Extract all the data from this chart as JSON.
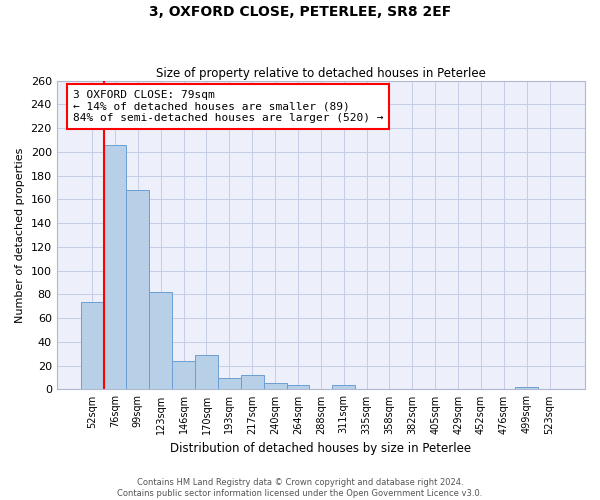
{
  "title1": "3, OXFORD CLOSE, PETERLEE, SR8 2EF",
  "title2": "Size of property relative to detached houses in Peterlee",
  "xlabel": "Distribution of detached houses by size in Peterlee",
  "ylabel": "Number of detached properties",
  "categories": [
    "52sqm",
    "76sqm",
    "99sqm",
    "123sqm",
    "146sqm",
    "170sqm",
    "193sqm",
    "217sqm",
    "240sqm",
    "264sqm",
    "288sqm",
    "311sqm",
    "335sqm",
    "358sqm",
    "382sqm",
    "405sqm",
    "429sqm",
    "452sqm",
    "476sqm",
    "499sqm",
    "523sqm"
  ],
  "values": [
    74,
    206,
    168,
    82,
    24,
    29,
    10,
    12,
    5,
    4,
    0,
    4,
    0,
    0,
    0,
    0,
    0,
    0,
    0,
    2,
    0
  ],
  "bar_color": "#b8cfe8",
  "bar_edge_color": "#6a9fd4",
  "annotation_text": "3 OXFORD CLOSE: 79sqm\n← 14% of detached houses are smaller (89)\n84% of semi-detached houses are larger (520) →",
  "annotation_box_color": "white",
  "annotation_box_edge_color": "red",
  "red_line_bar_index": 1,
  "ylim": [
    0,
    260
  ],
  "yticks": [
    0,
    20,
    40,
    60,
    80,
    100,
    120,
    140,
    160,
    180,
    200,
    220,
    240,
    260
  ],
  "footer1": "Contains HM Land Registry data © Crown copyright and database right 2024.",
  "footer2": "Contains public sector information licensed under the Open Government Licence v3.0.",
  "bg_color": "#edf0fa",
  "grid_color": "#c5cce8"
}
